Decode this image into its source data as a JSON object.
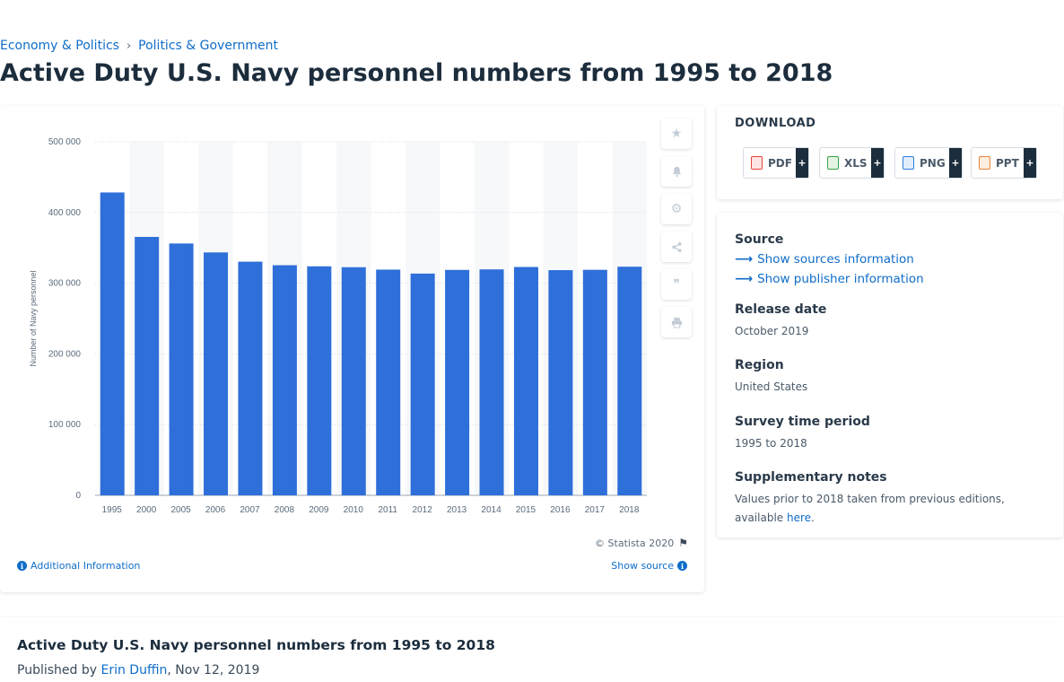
{
  "breadcrumb": {
    "items": [
      "Economy & Politics",
      "Politics & Government"
    ],
    "separator": "›"
  },
  "page_title": "Active Duty U.S. Navy personnel numbers from 1995 to 2018",
  "chart_data": {
    "type": "bar",
    "categories": [
      "1995",
      "2000",
      "2005",
      "2006",
      "2007",
      "2008",
      "2009",
      "2010",
      "2011",
      "2012",
      "2013",
      "2014",
      "2015",
      "2016",
      "2017",
      "2018"
    ],
    "values": [
      428340,
      365490,
      356185,
      343530,
      330460,
      325420,
      323880,
      322620,
      319210,
      313600,
      318810,
      319550,
      322960,
      318470,
      318950,
      323340
    ],
    "ylabel": "Number of Navy personnel",
    "ylim": [
      0,
      500000
    ],
    "yticks": [
      0,
      100000,
      200000,
      300000,
      400000,
      500000
    ],
    "ytick_labels": [
      "0",
      "100 000",
      "200 000",
      "300 000",
      "400 000",
      "500 000"
    ],
    "bar_color": "#2e6fd9",
    "grid": true
  },
  "chart_footer": {
    "copyright": "© Statista 2020",
    "additional_info": "Additional Information",
    "show_source": "Show source"
  },
  "toolbar": {
    "icons": [
      "star-icon",
      "bell-icon",
      "gear-icon",
      "share-icon",
      "quote-icon",
      "print-icon"
    ]
  },
  "download": {
    "title": "DOWNLOAD",
    "buttons": [
      {
        "label": "PDF",
        "color": "#e8423a"
      },
      {
        "label": "XLS",
        "color": "#3aa34a"
      },
      {
        "label": "PNG",
        "color": "#2f7fd6"
      },
      {
        "label": "PPT",
        "color": "#e8823a"
      }
    ],
    "plus": "+"
  },
  "meta": {
    "source_heading": "Source",
    "show_sources": "Show sources information",
    "show_publisher": "Show publisher information",
    "release_heading": "Release date",
    "release_value": "October 2019",
    "region_heading": "Region",
    "region_value": "United States",
    "survey_heading": "Survey time period",
    "survey_value": "1995 to 2018",
    "notes_heading": "Supplementary notes",
    "notes_value": "Values prior to 2018 taken from previous editions, available ",
    "notes_link": "here",
    "notes_end": "."
  },
  "bottom": {
    "title": "Active Duty U.S. Navy personnel numbers from 1995 to 2018",
    "published_prefix": "Published by ",
    "author": "Erin Duffin",
    "date": ", Nov 12, 2019"
  }
}
